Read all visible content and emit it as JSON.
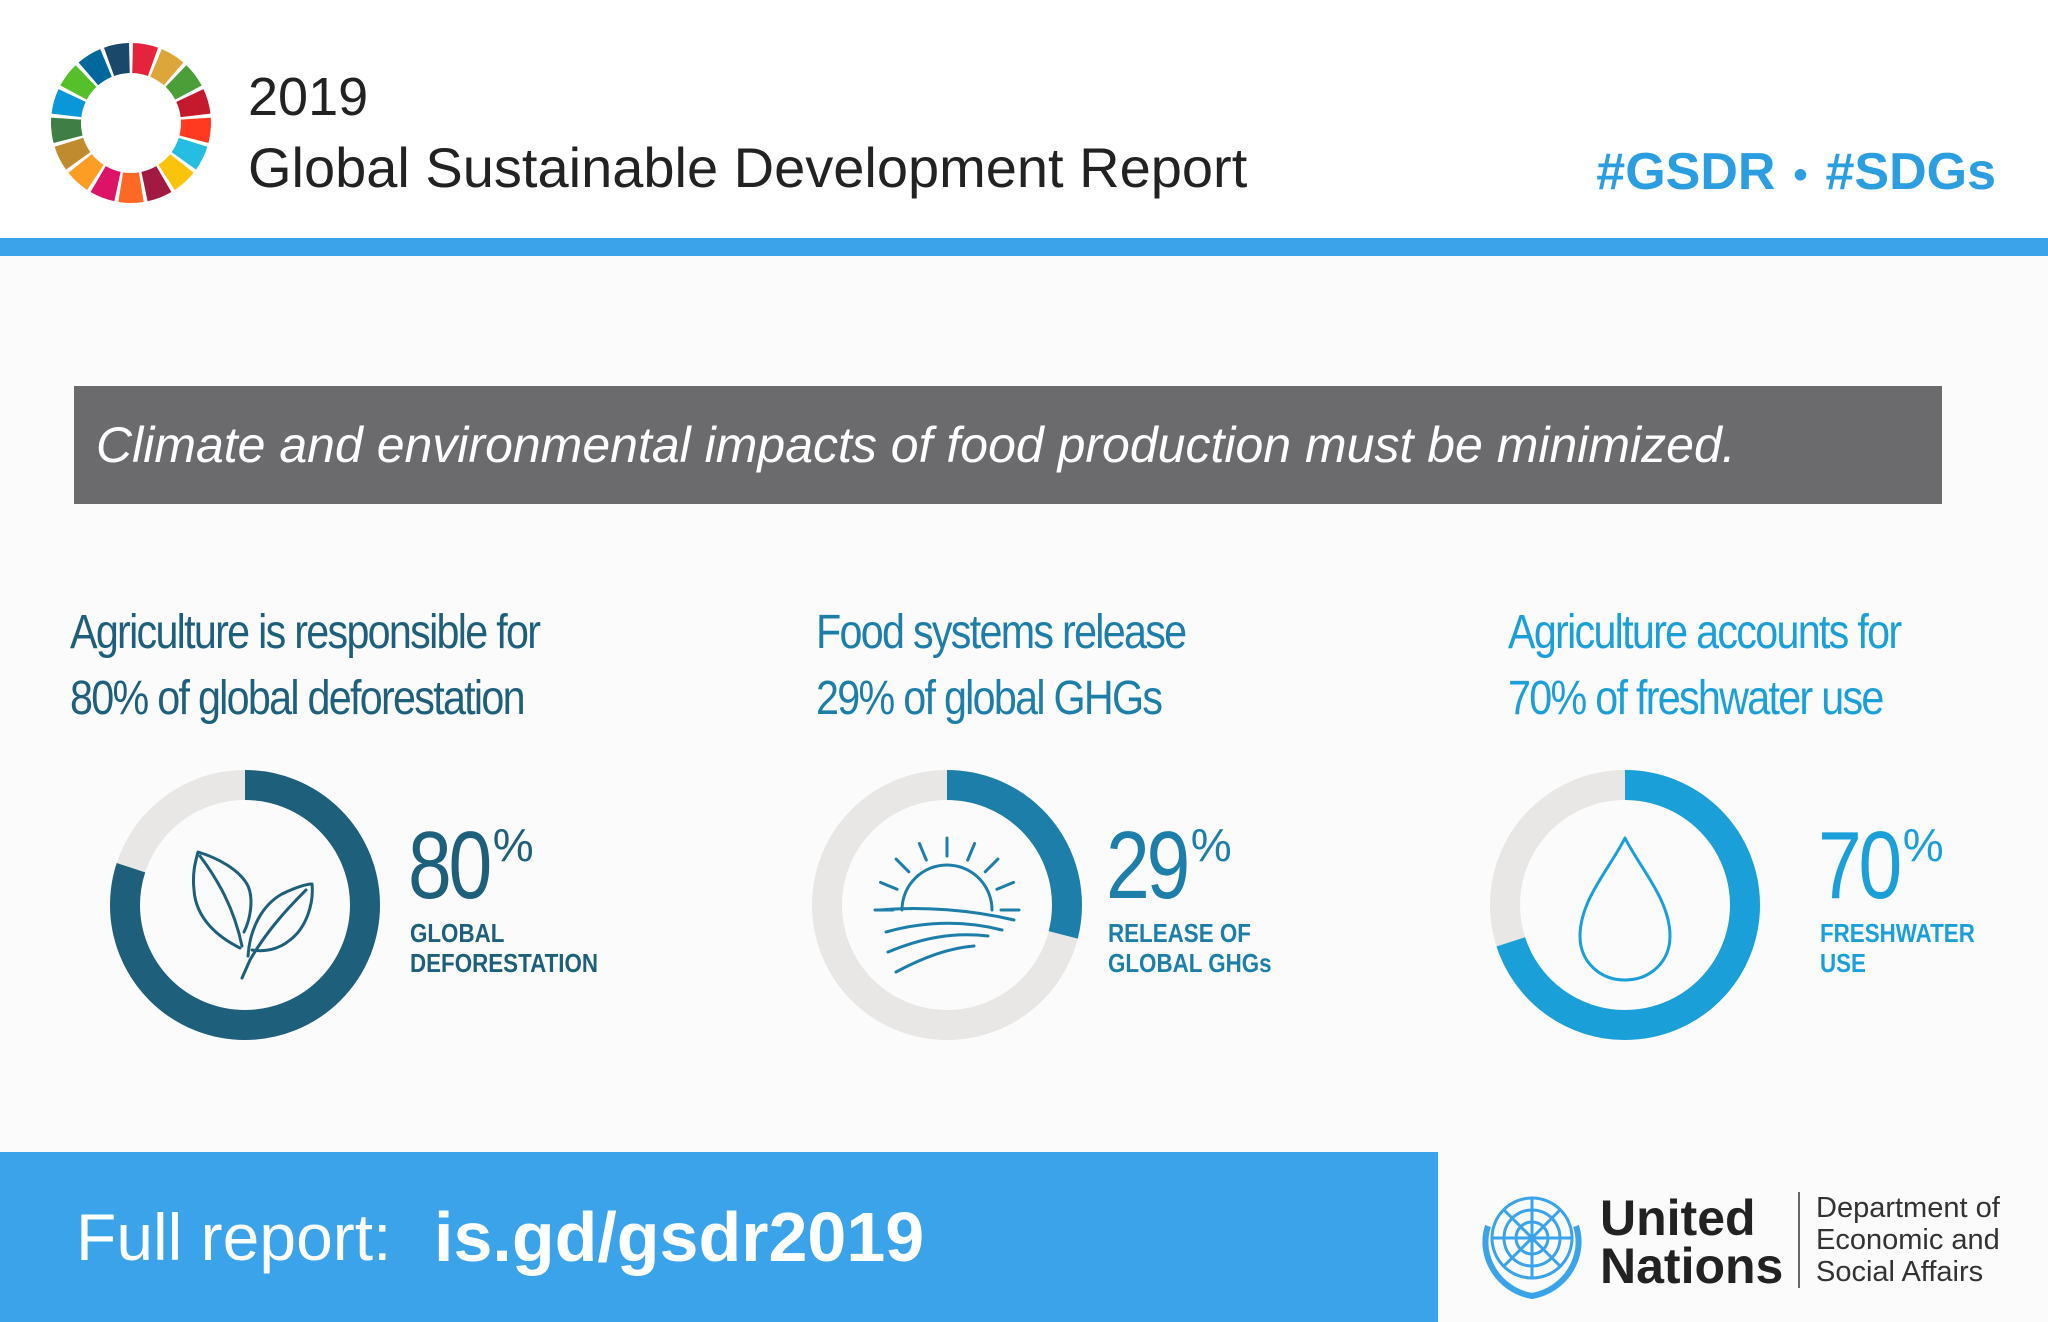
{
  "header": {
    "year": "2019",
    "title": "Global Sustainable Development Report",
    "hashtag_1": "#GSDR",
    "separator": "•",
    "hashtag_2": "#SDGs",
    "accent_color": "#3aa3ea"
  },
  "banner": {
    "text": "Climate and environmental impacts of food production must be minimized."
  },
  "chart_data": [
    {
      "type": "pie",
      "title_line1": "Agriculture is responsible for",
      "title_line2": "80% of global deforestation",
      "value": 80,
      "value_label": "80",
      "unit": "%",
      "label_line1": "GLOBAL",
      "label_line2": "DEFORESTATION",
      "icon": "leaves-icon",
      "color": "#1e5f7c",
      "track_color": "#e8e7e5"
    },
    {
      "type": "pie",
      "title_line1": "Food systems release",
      "title_line2": "29% of global GHGs",
      "value": 29,
      "value_label": "29",
      "unit": "%",
      "label_line1": "RELEASE OF",
      "label_line2": "GLOBAL GHGs",
      "icon": "sun-over-field-icon",
      "color": "#1c7ea9",
      "track_color": "#e8e7e5"
    },
    {
      "type": "pie",
      "title_line1": "Agriculture accounts for",
      "title_line2": "70% of freshwater use",
      "value": 70,
      "value_label": "70",
      "unit": "%",
      "label_line1": "FRESHWATER",
      "label_line2": "USE",
      "icon": "water-drop-icon",
      "color": "#1a9fd8",
      "track_color": "#e8e7e5"
    }
  ],
  "footer": {
    "label": "Full report:",
    "url": "is.gd/gsdr2019",
    "org_line1": "United",
    "org_line2": "Nations",
    "dept_line1": "Department of",
    "dept_line2": "Economic and",
    "dept_line3": "Social Affairs"
  }
}
